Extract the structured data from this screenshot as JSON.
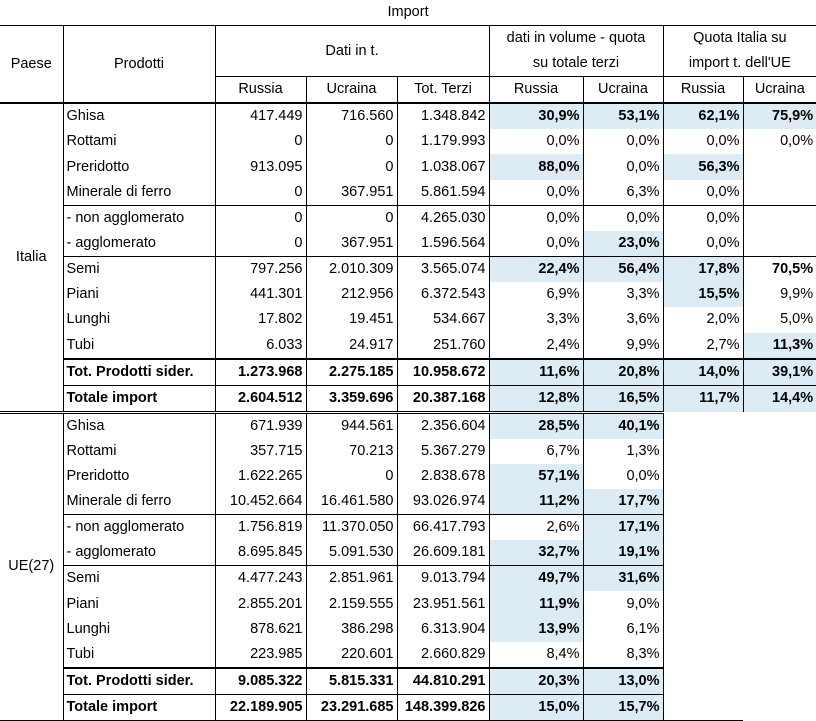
{
  "header": {
    "title": "Import",
    "paese": "Paese",
    "prodotti": "Prodotti",
    "dati": "Dati in t.",
    "volume_line1": "dati in volume - quota",
    "volume_line2": "su totale terzi",
    "quota_line1": "Quota Italia su",
    "quota_line2": "import t. dell'UE",
    "sub": [
      "Russia",
      "Ucraina",
      "Tot. Terzi",
      "Russia",
      "Ucraina",
      "Russia",
      "Ucraina"
    ]
  },
  "colors": {
    "highlight": "#dcebf4"
  },
  "sections": [
    {
      "country": "Italia",
      "rows": [
        {
          "name": "Ghisa",
          "russia": "417.449",
          "ucraina": "716.560",
          "terzi": "1.348.842",
          "vr": "30,9%",
          "vu": "53,1%",
          "qr": "62,1%",
          "qu": "75,9%"
        },
        {
          "name": "Rottami",
          "russia": "0",
          "ucraina": "0",
          "terzi": "1.179.993",
          "vr": "0,0%",
          "vu": "0,0%",
          "qr": "0,0%",
          "qu": "0,0%"
        },
        {
          "name": "Preridotto",
          "russia": "913.095",
          "ucraina": "0",
          "terzi": "1.038.067",
          "vr": "88,0%",
          "vu": "0,0%",
          "qr": "56,3%",
          "qu": ""
        },
        {
          "name": "Minerale di ferro",
          "russia": "0",
          "ucraina": "367.951",
          "terzi": "5.861.594",
          "vr": "0,0%",
          "vu": "6,3%",
          "qr": "0,0%",
          "qu": ""
        },
        {
          "name": "- non agglomerato",
          "russia": "0",
          "ucraina": "0",
          "terzi": "4.265.030",
          "vr": "0,0%",
          "vu": "0,0%",
          "qr": "0,0%",
          "qu": ""
        },
        {
          "name": "- agglomerato",
          "russia": "0",
          "ucraina": "367.951",
          "terzi": "1.596.564",
          "vr": "0,0%",
          "vu": "23,0%",
          "qr": "0,0%",
          "qu": ""
        },
        {
          "name": "Semi",
          "russia": "797.256",
          "ucraina": "2.010.309",
          "terzi": "3.565.074",
          "vr": "22,4%",
          "vu": "56,4%",
          "qr": "17,8%",
          "qu": "70,5%"
        },
        {
          "name": "Piani",
          "russia": "441.301",
          "ucraina": "212.956",
          "terzi": "6.372.543",
          "vr": "6,9%",
          "vu": "3,3%",
          "qr": "15,5%",
          "qu": "9,9%"
        },
        {
          "name": "Lunghi",
          "russia": "17.802",
          "ucraina": "19.451",
          "terzi": "534.667",
          "vr": "3,3%",
          "vu": "3,6%",
          "qr": "2,0%",
          "qu": "5,0%"
        },
        {
          "name": "Tubi",
          "russia": "6.033",
          "ucraina": "24.917",
          "terzi": "251.760",
          "vr": "2,4%",
          "vu": "9,9%",
          "qr": "2,7%",
          "qu": "11,3%"
        },
        {
          "name": "Tot. Prodotti sider.",
          "russia": "1.273.968",
          "ucraina": "2.275.185",
          "terzi": "10.958.672",
          "vr": "11,6%",
          "vu": "20,8%",
          "qr": "14,0%",
          "qu": "39,1%"
        },
        {
          "name": "Totale import",
          "russia": "2.604.512",
          "ucraina": "3.359.696",
          "terzi": "20.387.168",
          "vr": "12,8%",
          "vu": "16,5%",
          "qr": "11,7%",
          "qu": "14,4%"
        }
      ]
    },
    {
      "country": "UE(27)",
      "rows": [
        {
          "name": "Ghisa",
          "russia": "671.939",
          "ucraina": "944.561",
          "terzi": "2.356.604",
          "vr": "28,5%",
          "vu": "40,1%"
        },
        {
          "name": "Rottami",
          "russia": "357.715",
          "ucraina": "70.213",
          "terzi": "5.367.279",
          "vr": "6,7%",
          "vu": "1,3%"
        },
        {
          "name": "Preridotto",
          "russia": "1.622.265",
          "ucraina": "0",
          "terzi": "2.838.678",
          "vr": "57,1%",
          "vu": "0,0%"
        },
        {
          "name": "Minerale di ferro",
          "russia": "10.452.664",
          "ucraina": "16.461.580",
          "terzi": "93.026.974",
          "vr": "11,2%",
          "vu": "17,7%"
        },
        {
          "name": "- non agglomerato",
          "russia": "1.756.819",
          "ucraina": "11.370.050",
          "terzi": "66.417.793",
          "vr": "2,6%",
          "vu": "17,1%"
        },
        {
          "name": "- agglomerato",
          "russia": "8.695.845",
          "ucraina": "5.091.530",
          "terzi": "26.609.181",
          "vr": "32,7%",
          "vu": "19,1%"
        },
        {
          "name": "Semi",
          "russia": "4.477.243",
          "ucraina": "2.851.961",
          "terzi": "9.013.794",
          "vr": "49,7%",
          "vu": "31,6%"
        },
        {
          "name": "Piani",
          "russia": "2.855.201",
          "ucraina": "2.159.555",
          "terzi": "23.951.561",
          "vr": "11,9%",
          "vu": "9,0%"
        },
        {
          "name": "Lunghi",
          "russia": "878.621",
          "ucraina": "386.298",
          "terzi": "6.313.904",
          "vr": "13,9%",
          "vu": "6,1%"
        },
        {
          "name": "Tubi",
          "russia": "223.985",
          "ucraina": "220.601",
          "terzi": "2.660.829",
          "vr": "8,4%",
          "vu": "8,3%"
        },
        {
          "name": "Tot. Prodotti sider.",
          "russia": "9.085.322",
          "ucraina": "5.815.331",
          "terzi": "44.810.291",
          "vr": "20,3%",
          "vu": "13,0%"
        },
        {
          "name": "Totale import",
          "russia": "22.189.905",
          "ucraina": "23.291.685",
          "terzi": "148.399.826",
          "vr": "15,0%",
          "vu": "15,7%"
        }
      ]
    }
  ]
}
